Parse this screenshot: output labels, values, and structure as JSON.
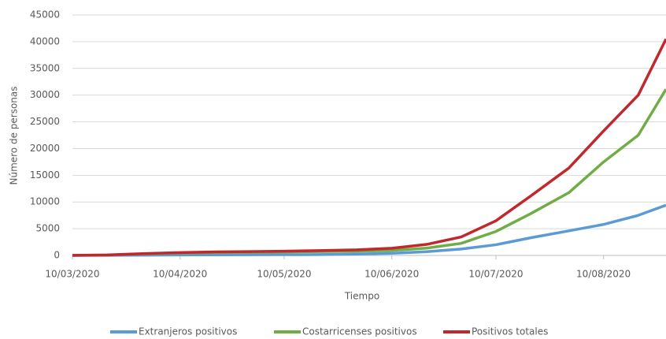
{
  "chart_data": {
    "type": "line",
    "xlabel": "Tiempo",
    "ylabel": "Número de personas",
    "x": [
      "10/03/2020",
      "20/03/2020",
      "31/03/2020",
      "10/04/2020",
      "20/04/2020",
      "30/04/2020",
      "10/05/2020",
      "20/05/2020",
      "31/05/2020",
      "10/06/2020",
      "20/06/2020",
      "30/06/2020",
      "10/07/2020",
      "20/07/2020",
      "31/07/2020",
      "10/08/2020",
      "20/08/2020",
      "28/08/2020"
    ],
    "series": [
      {
        "name": "Extranjeros positivos",
        "color": "#5b9bd5",
        "values": [
          5,
          20,
          60,
          90,
          110,
          120,
          140,
          170,
          250,
          400,
          700,
          1200,
          2000,
          3300,
          4600,
          5800,
          7500,
          9400
        ]
      },
      {
        "name": "Costarricenses positivos",
        "color": "#70ad47",
        "values": [
          15,
          67,
          287,
          449,
          559,
          599,
          652,
          727,
          797,
          942,
          1358,
          2259,
          4485,
          7814,
          11744,
          17486,
          22500,
          31100
        ]
      },
      {
        "name": "Positivos totales",
        "color": "#c0282d",
        "values": [
          20,
          87,
          347,
          539,
          669,
          719,
          792,
          897,
          1047,
          1342,
          2058,
          3459,
          6485,
          11114,
          16344,
          23286,
          30000,
          40500
        ]
      }
    ],
    "xlim": [
      "10/03/2020",
      "28/08/2020"
    ],
    "xticks": [
      "10/03/2020",
      "10/04/2020",
      "10/05/2020",
      "10/06/2020",
      "10/07/2020",
      "10/08/2020"
    ],
    "ylim": [
      0,
      45000
    ],
    "yticks": [
      0,
      5000,
      10000,
      15000,
      20000,
      25000,
      30000,
      35000,
      40000,
      45000
    ],
    "grid": true,
    "legend": "bottom"
  }
}
